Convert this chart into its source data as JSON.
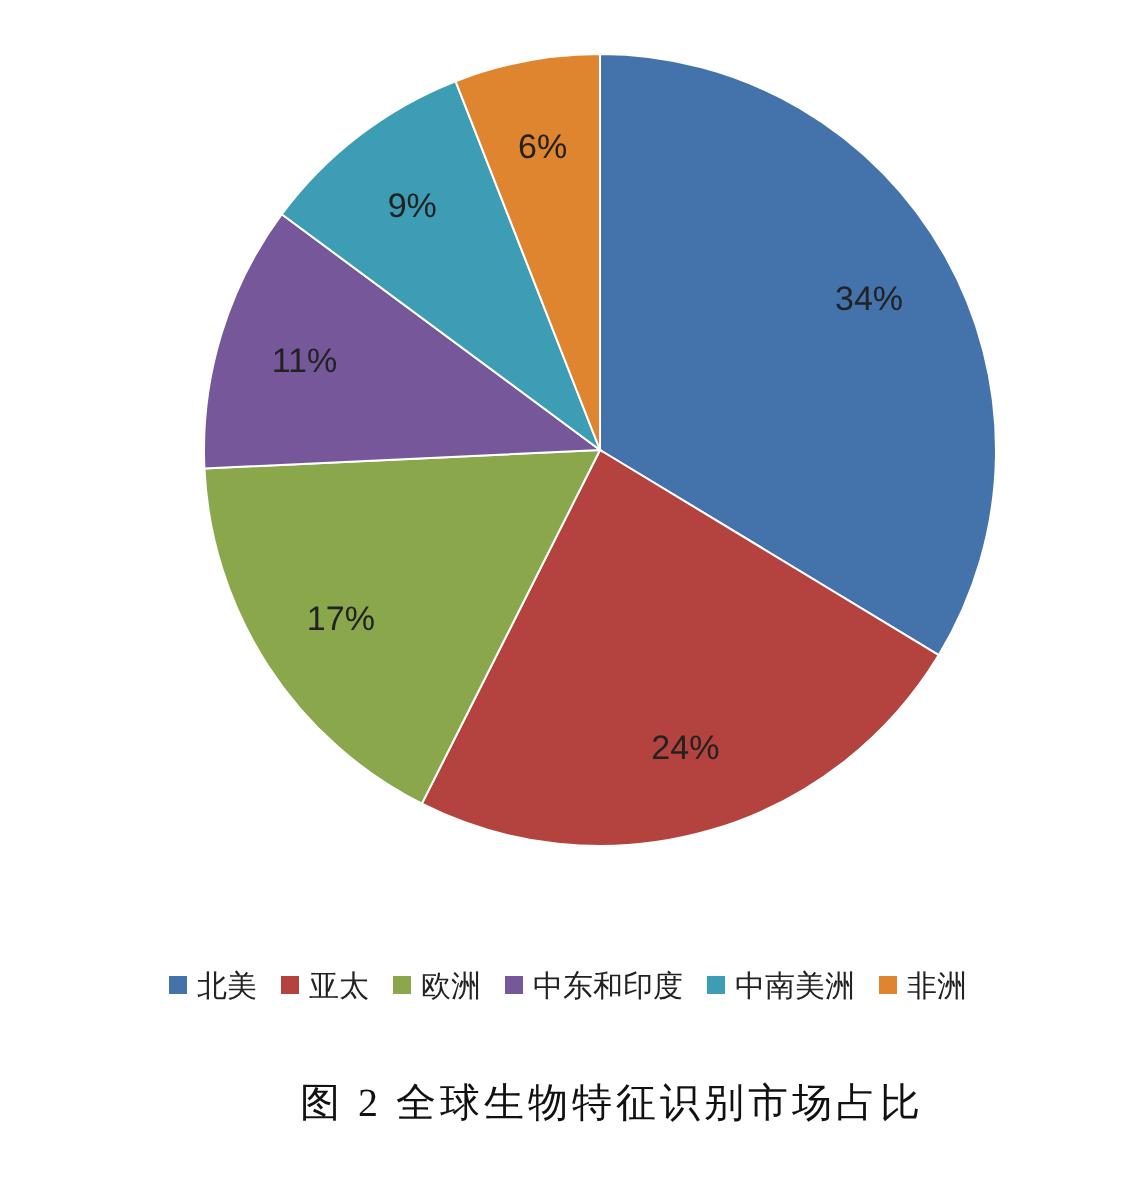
{
  "chart_data": {
    "type": "pie",
    "title": "图 2 全球生物特征识别市场占比",
    "categories": [
      "北美",
      "亚太",
      "欧洲",
      "中东和印度",
      "中南美洲",
      "非洲"
    ],
    "values": [
      34,
      24,
      17,
      11,
      9,
      6
    ],
    "colors": [
      "#4472aa",
      "#b4423e",
      "#8aa84b",
      "#76589a",
      "#3c9db5",
      "#e0852f"
    ],
    "value_labels": [
      "34%",
      "24%",
      "17%",
      "11%",
      "9%",
      "6%"
    ],
    "legend": "bottom"
  }
}
